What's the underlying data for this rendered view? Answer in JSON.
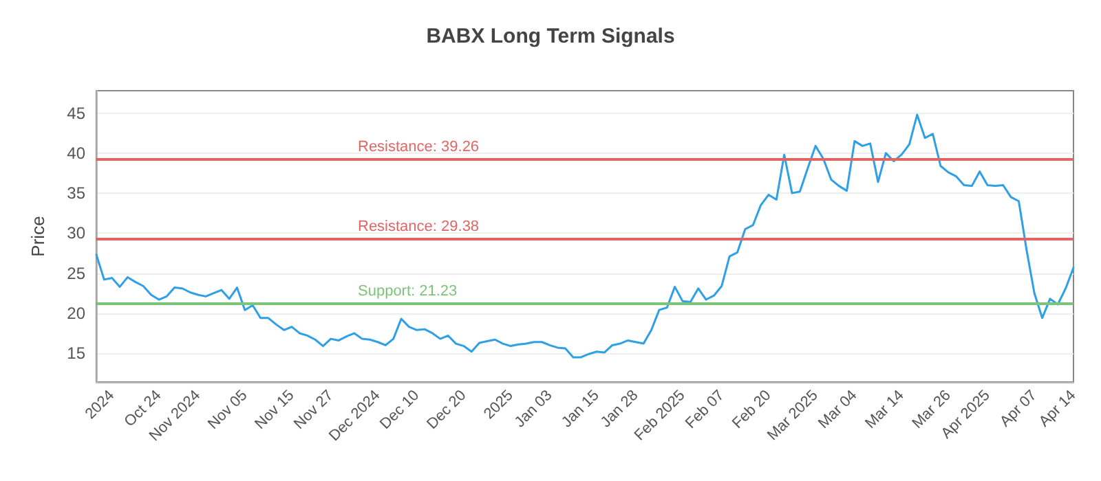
{
  "chart_data": {
    "type": "line",
    "title": "BABX Long Term Signals",
    "ylabel": "Price",
    "categories": [
      null,
      null,
      "2024",
      null,
      null,
      null,
      null,
      null,
      "Oct 24",
      null,
      null,
      null,
      null,
      "Nov 2024",
      null,
      null,
      null,
      null,
      null,
      "Nov 05",
      null,
      null,
      null,
      null,
      null,
      "Nov 15",
      null,
      null,
      null,
      null,
      "Nov 27",
      null,
      null,
      null,
      null,
      null,
      "Dec 2024",
      null,
      null,
      null,
      null,
      "Dec 10",
      null,
      null,
      null,
      null,
      null,
      "Dec 20",
      null,
      null,
      null,
      null,
      null,
      "2025",
      null,
      null,
      null,
      null,
      "Jan 03",
      null,
      null,
      null,
      null,
      null,
      "Jan 15",
      null,
      null,
      null,
      null,
      "Jan 28",
      null,
      null,
      null,
      null,
      null,
      "Feb 2025",
      null,
      null,
      null,
      null,
      "Feb 07",
      null,
      null,
      null,
      null,
      null,
      "Feb 20",
      null,
      null,
      null,
      null,
      null,
      "Mar 2025",
      null,
      null,
      null,
      null,
      "Mar 04",
      null,
      null,
      null,
      null,
      null,
      "Mar 14",
      null,
      null,
      null,
      null,
      null,
      "Mar 26",
      null,
      null,
      null,
      null,
      "Apr 2025",
      null,
      null,
      null,
      null,
      null,
      "Apr 07",
      null,
      null,
      null,
      null,
      "Apr 14"
    ],
    "series": [
      {
        "color": "#2f9fe6",
        "values": [
          27.3,
          24.2,
          24.4,
          23.3,
          24.5,
          23.9,
          23.4,
          22.3,
          21.7,
          22.1,
          23.2,
          23.1,
          22.6,
          22.3,
          22.1,
          22.5,
          22.9,
          21.8,
          23.2,
          20.4,
          21.0,
          19.4,
          19.4,
          18.6,
          17.9,
          18.3,
          17.5,
          17.2,
          16.7,
          15.9,
          16.8,
          16.6,
          17.1,
          17.5,
          16.8,
          16.7,
          16.4,
          16.0,
          16.8,
          19.3,
          18.3,
          17.9,
          18.0,
          17.5,
          16.8,
          17.2,
          16.2,
          15.9,
          15.2,
          16.3,
          16.5,
          16.7,
          16.2,
          15.9,
          16.1,
          16.2,
          16.4,
          16.4,
          16.0,
          15.7,
          15.6,
          14.5,
          14.5,
          14.9,
          15.2,
          15.1,
          16.0,
          16.2,
          16.6,
          16.4,
          16.2,
          17.9,
          20.4,
          20.7,
          23.3,
          21.5,
          21.4,
          23.1,
          21.7,
          22.2,
          23.4,
          27.1,
          27.6,
          30.5,
          31.0,
          33.5,
          34.8,
          34.2,
          39.8,
          35.0,
          35.2,
          38.1,
          40.9,
          39.3,
          36.7,
          35.9,
          35.3,
          41.5,
          40.9,
          41.2,
          36.4,
          40.0,
          39.0,
          39.8,
          41.1,
          44.8,
          41.9,
          42.4,
          38.4,
          37.6,
          37.1,
          36.0,
          35.9,
          37.7,
          36.0,
          35.9,
          36.0,
          34.5,
          34.0,
          27.9,
          22.5,
          19.4,
          21.8,
          21.1,
          23.1,
          25.7
        ]
      }
    ],
    "ylim": [
      11.4,
      47.8
    ],
    "yticks": [
      15,
      20,
      25,
      30,
      35,
      40,
      45
    ],
    "grid": "y",
    "marker": "none",
    "line_style": "solid",
    "ref_lines": [
      {
        "axis": "y",
        "value": 39.26,
        "label": "Resistance: 39.26",
        "color": "#e06666"
      },
      {
        "axis": "y",
        "value": 29.38,
        "label": "Resistance: 29.38",
        "color": "#e06666"
      },
      {
        "axis": "y",
        "value": 21.23,
        "label": "Support: 21.23",
        "color": "#7cc47c"
      }
    ]
  }
}
